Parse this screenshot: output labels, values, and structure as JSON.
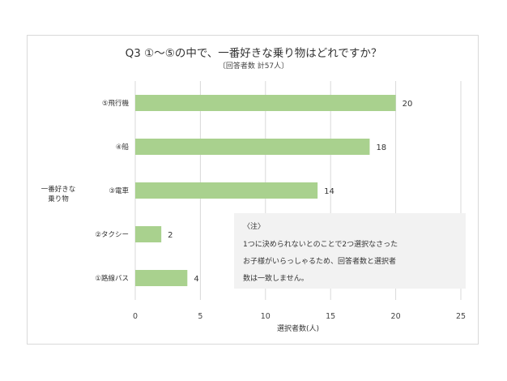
{
  "chart_data": {
    "type": "bar",
    "orientation": "horizontal",
    "title": "Q3 ①～⑤の中で、一番好きな乗り物はどれですか？",
    "subtitle": "〔回答者数 計57人〕",
    "ylabel_lines": [
      "一番好きな",
      "乗り物"
    ],
    "xlabel": "選択者数(人)",
    "categories": [
      "⑤飛行機",
      "④船",
      "③電車",
      "②タクシー",
      "①路線バス"
    ],
    "values": [
      20,
      18,
      14,
      2,
      4
    ],
    "xlim": [
      0,
      25
    ],
    "xticks": [
      0,
      5,
      10,
      15,
      20,
      25
    ],
    "grid": "vertical",
    "bar_color": "#a9d18e",
    "note": {
      "lines": [
        "〈注〉",
        "1つに決められないとのことで2つ選択なさった",
        "お子様がいらっしゃるため、回答者数と選択者",
        "数は一致しません。"
      ]
    }
  }
}
